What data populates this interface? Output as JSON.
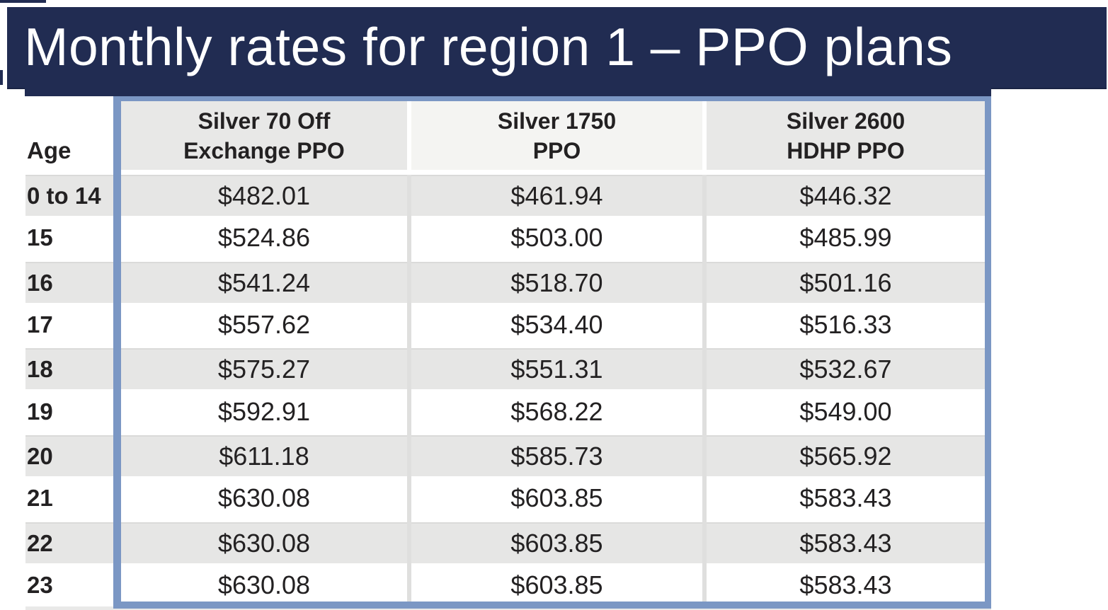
{
  "title": "Monthly rates for region 1 – PPO plans",
  "colors": {
    "navy": "#212C52",
    "navy_dark": "#1A2444",
    "steel_blue": "#7B97C4",
    "cell_gray": "#E6E6E5",
    "cell_gray_top": "#DADAD9",
    "header_gray": "#E8E8E7",
    "header_light": "#F4F4F2",
    "divider": "#DFDFDE",
    "text": "#232122",
    "partial_row_gray": "#E9E9E8"
  },
  "table": {
    "age_header": "Age",
    "columns": [
      {
        "line1": "Silver 70 Off",
        "line2": "Exchange PPO"
      },
      {
        "line1": "Silver 1750",
        "line2": "PPO"
      },
      {
        "line1": "Silver 2600",
        "line2": "HDHP PPO"
      }
    ],
    "rows": [
      {
        "age": "0 to 14",
        "values": [
          "$482.01",
          "$461.94",
          "$446.32"
        ]
      },
      {
        "age": "15",
        "values": [
          "$524.86",
          "$503.00",
          "$485.99"
        ]
      },
      {
        "age": "16",
        "values": [
          "$541.24",
          "$518.70",
          "$501.16"
        ]
      },
      {
        "age": "17",
        "values": [
          "$557.62",
          "$534.40",
          "$516.33"
        ]
      },
      {
        "age": "18",
        "values": [
          "$575.27",
          "$551.31",
          "$532.67"
        ]
      },
      {
        "age": "19",
        "values": [
          "$592.91",
          "$568.22",
          "$549.00"
        ]
      },
      {
        "age": "20",
        "values": [
          "$611.18",
          "$585.73",
          "$565.92"
        ]
      },
      {
        "age": "21",
        "values": [
          "$630.08",
          "$603.85",
          "$583.43"
        ]
      },
      {
        "age": "22",
        "values": [
          "$630.08",
          "$603.85",
          "$583.43"
        ]
      },
      {
        "age": "23",
        "values": [
          "$630.08",
          "$603.85",
          "$583.43"
        ]
      }
    ]
  }
}
